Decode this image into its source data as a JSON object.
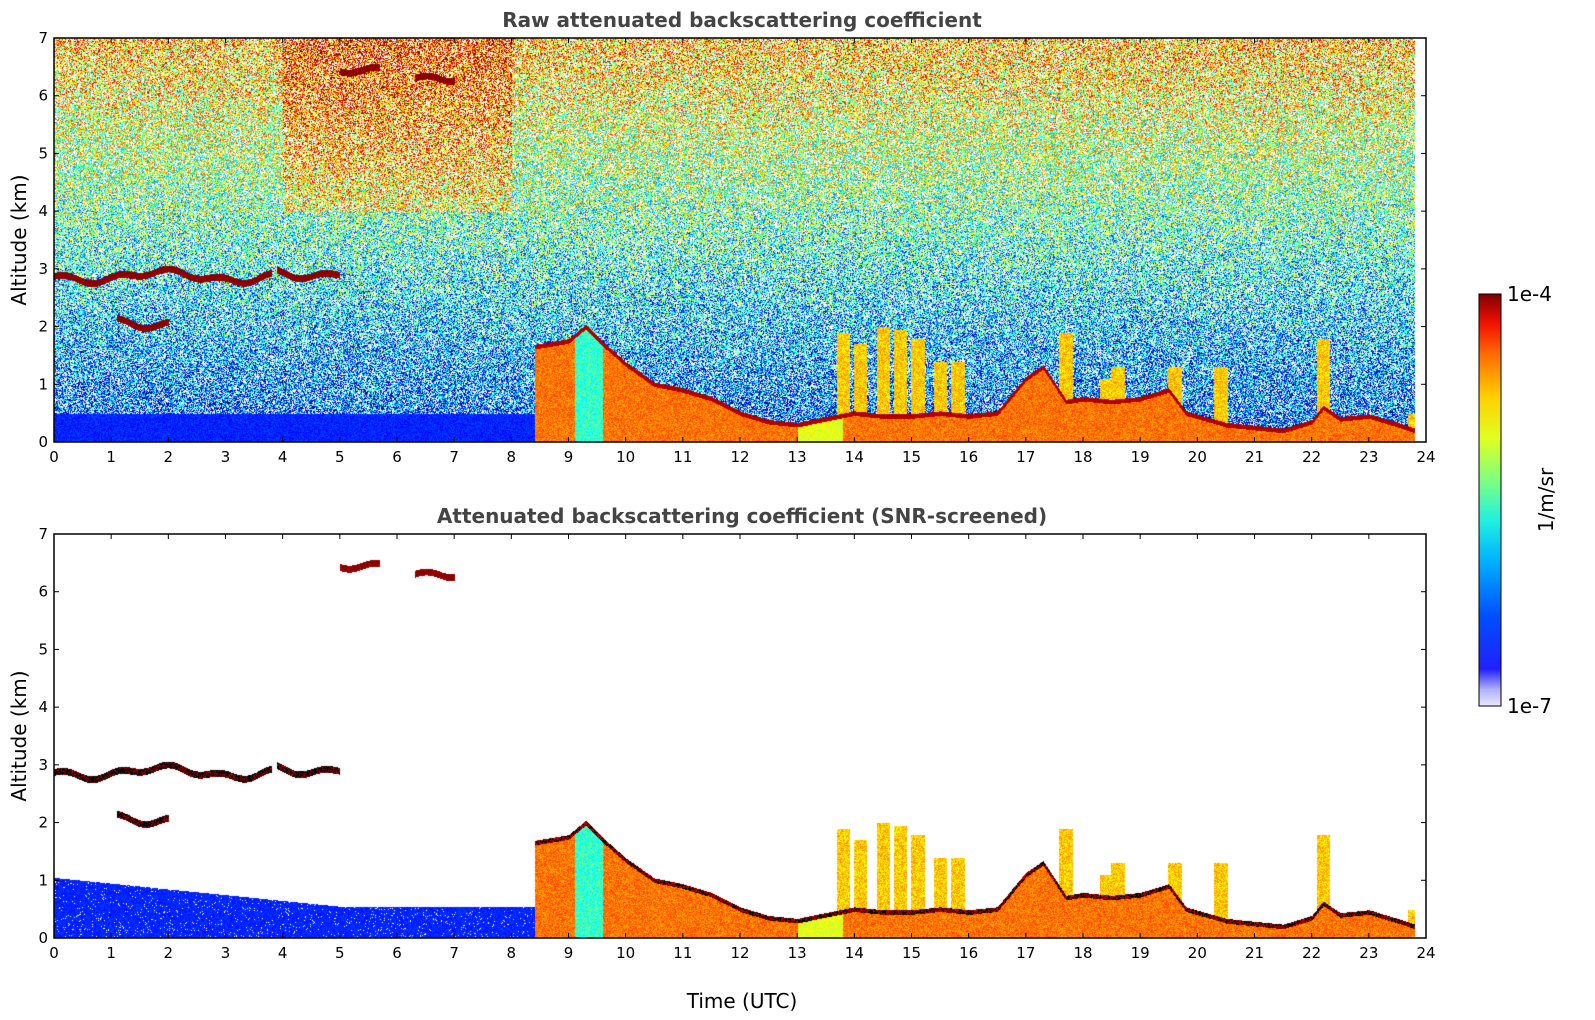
{
  "chart_data": [
    {
      "type": "heatmap",
      "title": "Raw attenuated backscattering coefficient",
      "xlabel": "",
      "ylabel": "Altitude (km)",
      "xlim": [
        0,
        24
      ],
      "ylim": [
        0,
        7
      ],
      "xticks": [
        "0",
        "1",
        "2",
        "3",
        "4",
        "5",
        "6",
        "7",
        "8",
        "9",
        "10",
        "11",
        "12",
        "13",
        "14",
        "15",
        "16",
        "17",
        "18",
        "19",
        "20",
        "21",
        "22",
        "23",
        "24"
      ],
      "yticks": [
        "0",
        "1",
        "2",
        "3",
        "4",
        "5",
        "6",
        "7"
      ],
      "data_time_end": 23.8,
      "screened": false,
      "layers": [
        {
          "t": [
            0,
            3.8
          ],
          "alt": 2.88
        },
        {
          "t": [
            3.9,
            5.0
          ],
          "alt": 2.95
        },
        {
          "t": [
            1.1,
            2.0
          ],
          "alt": 2.1
        },
        {
          "t": [
            5.0,
            5.7
          ],
          "alt": 6.45
        },
        {
          "t": [
            6.3,
            7.0
          ],
          "alt": 6.3
        }
      ],
      "boundary_layer_top": [
        [
          8.4,
          1.65
        ],
        [
          9.0,
          1.75
        ],
        [
          9.3,
          2.0
        ],
        [
          9.6,
          1.7
        ],
        [
          10.0,
          1.35
        ],
        [
          10.5,
          1.0
        ],
        [
          11.0,
          0.9
        ],
        [
          11.5,
          0.75
        ],
        [
          12.0,
          0.5
        ],
        [
          12.5,
          0.35
        ],
        [
          13.0,
          0.3
        ],
        [
          13.5,
          0.4
        ],
        [
          14.0,
          0.5
        ],
        [
          14.5,
          0.45
        ],
        [
          15.0,
          0.45
        ],
        [
          15.5,
          0.5
        ],
        [
          16.0,
          0.45
        ],
        [
          16.5,
          0.5
        ],
        [
          17.0,
          1.1
        ],
        [
          17.3,
          1.3
        ],
        [
          17.5,
          1.0
        ],
        [
          17.7,
          0.7
        ],
        [
          18.0,
          0.75
        ],
        [
          18.5,
          0.7
        ],
        [
          19.0,
          0.75
        ],
        [
          19.5,
          0.9
        ],
        [
          19.8,
          0.5
        ],
        [
          20.5,
          0.3
        ],
        [
          21.0,
          0.25
        ],
        [
          21.5,
          0.2
        ],
        [
          22.0,
          0.35
        ],
        [
          22.2,
          0.6
        ],
        [
          22.5,
          0.4
        ],
        [
          23.0,
          0.45
        ],
        [
          23.5,
          0.3
        ],
        [
          23.8,
          0.2
        ]
      ],
      "colorbar": {
        "min": "1e-7",
        "max": "1e-4",
        "label": "1/m/sr",
        "scale": "log",
        "colormap": "jet"
      }
    },
    {
      "type": "heatmap",
      "title": "Attenuated backscattering coefficient (SNR-screened)",
      "xlabel": "Time (UTC)",
      "ylabel": "Altitude (km)",
      "xlim": [
        0,
        24
      ],
      "ylim": [
        0,
        7
      ],
      "xticks": [
        "0",
        "1",
        "2",
        "3",
        "4",
        "5",
        "6",
        "7",
        "8",
        "9",
        "10",
        "11",
        "12",
        "13",
        "14",
        "15",
        "16",
        "17",
        "18",
        "19",
        "20",
        "21",
        "22",
        "23",
        "24"
      ],
      "yticks": [
        "0",
        "1",
        "2",
        "3",
        "4",
        "5",
        "6",
        "7"
      ],
      "data_time_end": 23.8,
      "screened": true
    }
  ]
}
